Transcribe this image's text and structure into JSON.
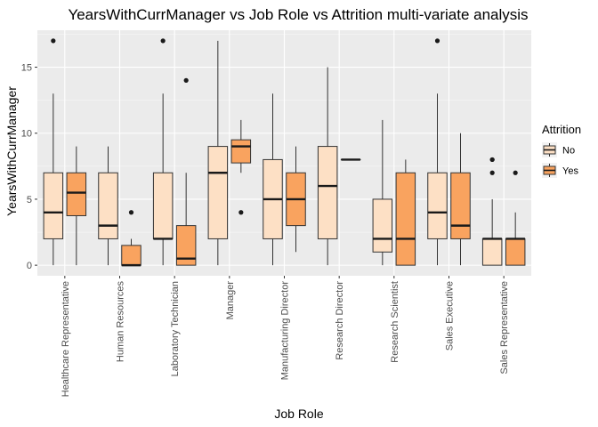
{
  "chart_data": {
    "type": "box",
    "title": "YearsWithCurrManager vs Job Role vs Attrition multi-variate analysis",
    "xlabel": "Job Role",
    "ylabel": "YearsWithCurrManager",
    "ylim": [
      -0.8,
      17.8
    ],
    "yticks": [
      0,
      5,
      10,
      15
    ],
    "grid": true,
    "legend": {
      "title": "Attrition",
      "position": "right",
      "items": [
        {
          "label": "No",
          "color": "#fde0c5"
        },
        {
          "label": "Yes",
          "color": "#f9a35f"
        }
      ]
    },
    "categories": [
      "Healthcare Representative",
      "Human Resources",
      "Laboratory Technician",
      "Manager",
      "Manufacturing Director",
      "Research Director",
      "Research Scientist",
      "Sales Executive",
      "Sales Representative"
    ],
    "series": [
      {
        "name": "No",
        "color": "#fde0c5",
        "boxes": [
          {
            "lo": 0,
            "q1": 2,
            "median": 4,
            "q3": 7,
            "hi": 13,
            "outliers": [
              17
            ]
          },
          {
            "lo": 0,
            "q1": 2,
            "median": 3,
            "q3": 7,
            "hi": 9,
            "outliers": []
          },
          {
            "lo": 0,
            "q1": 2,
            "median": 2,
            "q3": 7,
            "hi": 13,
            "outliers": [
              17
            ]
          },
          {
            "lo": 0,
            "q1": 2,
            "median": 7,
            "q3": 9,
            "hi": 17,
            "outliers": []
          },
          {
            "lo": 0,
            "q1": 2,
            "median": 5,
            "q3": 8,
            "hi": 13,
            "outliers": []
          },
          {
            "lo": 0,
            "q1": 2,
            "median": 6,
            "q3": 9,
            "hi": 15,
            "outliers": []
          },
          {
            "lo": 0,
            "q1": 1,
            "median": 2,
            "q3": 5,
            "hi": 11,
            "outliers": []
          },
          {
            "lo": 0,
            "q1": 2,
            "median": 4,
            "q3": 7,
            "hi": 13,
            "outliers": [
              17
            ]
          },
          {
            "lo": 0,
            "q1": 0,
            "median": 2,
            "q3": 2,
            "hi": 5,
            "outliers": [
              7,
              8,
              8
            ]
          }
        ]
      },
      {
        "name": "Yes",
        "color": "#f9a35f",
        "boxes": [
          {
            "lo": 0,
            "q1": 3.75,
            "median": 5.5,
            "q3": 7,
            "hi": 9,
            "outliers": []
          },
          {
            "lo": 0,
            "q1": 0,
            "median": 0,
            "q3": 1.5,
            "hi": 2,
            "outliers": [
              4
            ]
          },
          {
            "lo": 0,
            "q1": 0,
            "median": 0.5,
            "q3": 3,
            "hi": 7,
            "outliers": [
              14
            ]
          },
          {
            "lo": 7,
            "q1": 7.75,
            "median": 9,
            "q3": 9.5,
            "hi": 11,
            "outliers": [
              4
            ]
          },
          {
            "lo": 1,
            "q1": 3,
            "median": 5,
            "q3": 7,
            "hi": 9,
            "outliers": []
          },
          {
            "lo": 8,
            "q1": 8,
            "median": 8,
            "q3": 8,
            "hi": 8,
            "outliers": []
          },
          {
            "lo": 0,
            "q1": 0,
            "median": 2,
            "q3": 7,
            "hi": 8,
            "outliers": []
          },
          {
            "lo": 0,
            "q1": 2,
            "median": 3,
            "q3": 7,
            "hi": 10,
            "outliers": []
          },
          {
            "lo": 0,
            "q1": 0,
            "median": 2,
            "q3": 2,
            "hi": 4,
            "outliers": [
              7
            ]
          }
        ]
      }
    ]
  }
}
